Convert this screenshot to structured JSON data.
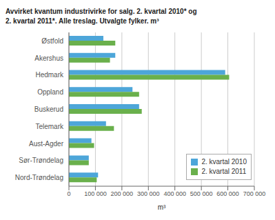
{
  "chart_data": {
    "type": "bar",
    "orientation": "horizontal",
    "title": "Avvirket kvantum industrivirke for salg. 2. kvartal 2010* og\n2. kvartal 2011*. Alle treslag. Utvalgte fylker. m³",
    "categories": [
      "Østfold",
      "Akershus",
      "Hedmark",
      "Oppland",
      "Buskerud",
      "Telemark",
      "Aust-Agder",
      "Sør-Trøndelag",
      "Nord-Trøndelag"
    ],
    "series": [
      {
        "name": "2. kvartal 2010",
        "color": "#4da6d9",
        "values": [
          130000,
          175000,
          590000,
          240000,
          265000,
          140000,
          85000,
          75000,
          110000
        ]
      },
      {
        "name": "2. kvartal 2011",
        "color": "#6ab04c",
        "values": [
          175000,
          155000,
          605000,
          265000,
          275000,
          170000,
          95000,
          75000,
          105000
        ]
      }
    ],
    "xlabel": "m³",
    "xlim": [
      0,
      700000
    ],
    "xticks": [
      0,
      {
        "value": 100000,
        "label": "100 000"
      },
      {
        "value": 200000,
        "label": "200 000"
      },
      {
        "value": 300000,
        "label": "300 000"
      },
      {
        "value": 400000,
        "label": "400 000"
      },
      {
        "value": 500000,
        "label": "500 000"
      },
      {
        "value": 600000,
        "label": "600 000"
      },
      {
        "value": 700000,
        "label": "700 000"
      }
    ],
    "grid": true,
    "legend": "lower right"
  }
}
